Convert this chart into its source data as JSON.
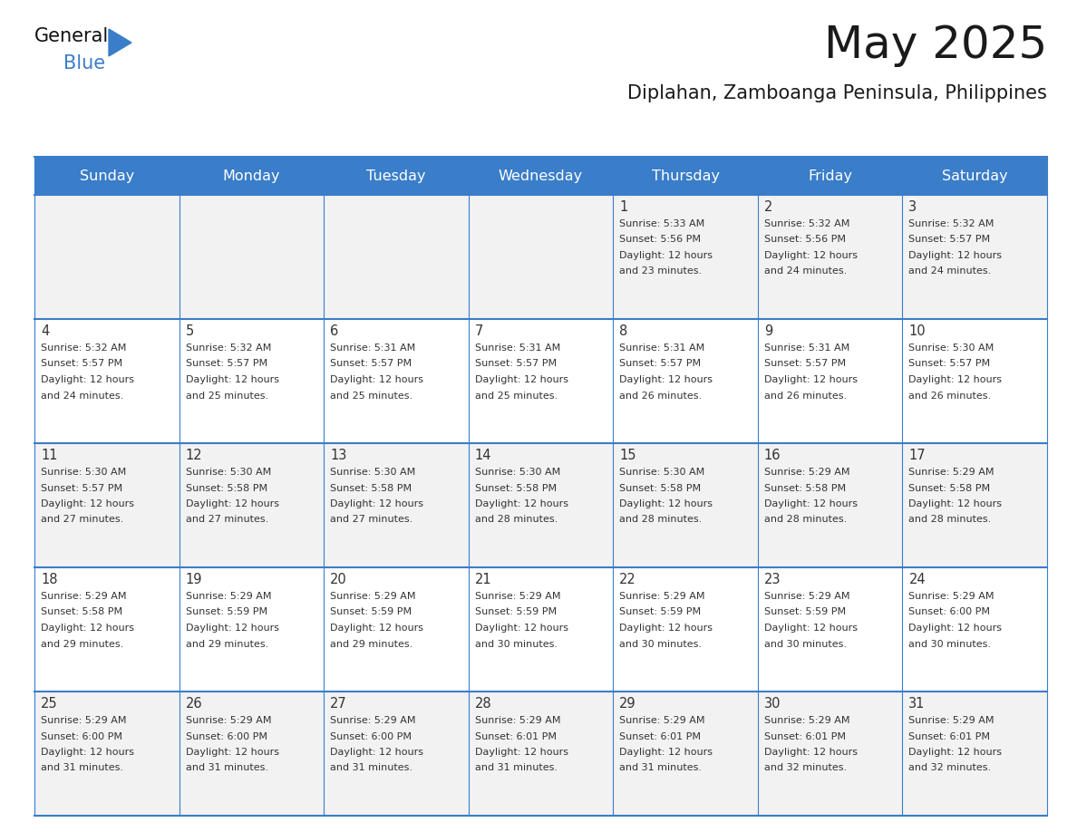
{
  "title": "May 2025",
  "subtitle": "Diplahan, Zamboanga Peninsula, Philippines",
  "days_of_week": [
    "Sunday",
    "Monday",
    "Tuesday",
    "Wednesday",
    "Thursday",
    "Friday",
    "Saturday"
  ],
  "header_bg_color": "#3A7DC9",
  "header_text_color": "#FFFFFF",
  "cell_bg_row0": "#F2F2F2",
  "cell_bg_row1": "#FFFFFF",
  "cell_text_color": "#333333",
  "day_number_color": "#333333",
  "grid_color": "#3A7DC9",
  "title_color": "#1a1a1a",
  "subtitle_color": "#1a1a1a",
  "logo_general_color": "#111111",
  "logo_blue_color": "#3A7DC9",
  "calendar_data": [
    {
      "day": 1,
      "col": 4,
      "row": 0,
      "sunrise": "5:33 AM",
      "sunset": "5:56 PM",
      "daylight_min": "23"
    },
    {
      "day": 2,
      "col": 5,
      "row": 0,
      "sunrise": "5:32 AM",
      "sunset": "5:56 PM",
      "daylight_min": "24"
    },
    {
      "day": 3,
      "col": 6,
      "row": 0,
      "sunrise": "5:32 AM",
      "sunset": "5:57 PM",
      "daylight_min": "24"
    },
    {
      "day": 4,
      "col": 0,
      "row": 1,
      "sunrise": "5:32 AM",
      "sunset": "5:57 PM",
      "daylight_min": "24"
    },
    {
      "day": 5,
      "col": 1,
      "row": 1,
      "sunrise": "5:32 AM",
      "sunset": "5:57 PM",
      "daylight_min": "25"
    },
    {
      "day": 6,
      "col": 2,
      "row": 1,
      "sunrise": "5:31 AM",
      "sunset": "5:57 PM",
      "daylight_min": "25"
    },
    {
      "day": 7,
      "col": 3,
      "row": 1,
      "sunrise": "5:31 AM",
      "sunset": "5:57 PM",
      "daylight_min": "25"
    },
    {
      "day": 8,
      "col": 4,
      "row": 1,
      "sunrise": "5:31 AM",
      "sunset": "5:57 PM",
      "daylight_min": "26"
    },
    {
      "day": 9,
      "col": 5,
      "row": 1,
      "sunrise": "5:31 AM",
      "sunset": "5:57 PM",
      "daylight_min": "26"
    },
    {
      "day": 10,
      "col": 6,
      "row": 1,
      "sunrise": "5:30 AM",
      "sunset": "5:57 PM",
      "daylight_min": "26"
    },
    {
      "day": 11,
      "col": 0,
      "row": 2,
      "sunrise": "5:30 AM",
      "sunset": "5:57 PM",
      "daylight_min": "27"
    },
    {
      "day": 12,
      "col": 1,
      "row": 2,
      "sunrise": "5:30 AM",
      "sunset": "5:58 PM",
      "daylight_min": "27"
    },
    {
      "day": 13,
      "col": 2,
      "row": 2,
      "sunrise": "5:30 AM",
      "sunset": "5:58 PM",
      "daylight_min": "27"
    },
    {
      "day": 14,
      "col": 3,
      "row": 2,
      "sunrise": "5:30 AM",
      "sunset": "5:58 PM",
      "daylight_min": "28"
    },
    {
      "day": 15,
      "col": 4,
      "row": 2,
      "sunrise": "5:30 AM",
      "sunset": "5:58 PM",
      "daylight_min": "28"
    },
    {
      "day": 16,
      "col": 5,
      "row": 2,
      "sunrise": "5:29 AM",
      "sunset": "5:58 PM",
      "daylight_min": "28"
    },
    {
      "day": 17,
      "col": 6,
      "row": 2,
      "sunrise": "5:29 AM",
      "sunset": "5:58 PM",
      "daylight_min": "28"
    },
    {
      "day": 18,
      "col": 0,
      "row": 3,
      "sunrise": "5:29 AM",
      "sunset": "5:58 PM",
      "daylight_min": "29"
    },
    {
      "day": 19,
      "col": 1,
      "row": 3,
      "sunrise": "5:29 AM",
      "sunset": "5:59 PM",
      "daylight_min": "29"
    },
    {
      "day": 20,
      "col": 2,
      "row": 3,
      "sunrise": "5:29 AM",
      "sunset": "5:59 PM",
      "daylight_min": "29"
    },
    {
      "day": 21,
      "col": 3,
      "row": 3,
      "sunrise": "5:29 AM",
      "sunset": "5:59 PM",
      "daylight_min": "30"
    },
    {
      "day": 22,
      "col": 4,
      "row": 3,
      "sunrise": "5:29 AM",
      "sunset": "5:59 PM",
      "daylight_min": "30"
    },
    {
      "day": 23,
      "col": 5,
      "row": 3,
      "sunrise": "5:29 AM",
      "sunset": "5:59 PM",
      "daylight_min": "30"
    },
    {
      "day": 24,
      "col": 6,
      "row": 3,
      "sunrise": "5:29 AM",
      "sunset": "6:00 PM",
      "daylight_min": "30"
    },
    {
      "day": 25,
      "col": 0,
      "row": 4,
      "sunrise": "5:29 AM",
      "sunset": "6:00 PM",
      "daylight_min": "31"
    },
    {
      "day": 26,
      "col": 1,
      "row": 4,
      "sunrise": "5:29 AM",
      "sunset": "6:00 PM",
      "daylight_min": "31"
    },
    {
      "day": 27,
      "col": 2,
      "row": 4,
      "sunrise": "5:29 AM",
      "sunset": "6:00 PM",
      "daylight_min": "31"
    },
    {
      "day": 28,
      "col": 3,
      "row": 4,
      "sunrise": "5:29 AM",
      "sunset": "6:01 PM",
      "daylight_min": "31"
    },
    {
      "day": 29,
      "col": 4,
      "row": 4,
      "sunrise": "5:29 AM",
      "sunset": "6:01 PM",
      "daylight_min": "31"
    },
    {
      "day": 30,
      "col": 5,
      "row": 4,
      "sunrise": "5:29 AM",
      "sunset": "6:01 PM",
      "daylight_min": "32"
    },
    {
      "day": 31,
      "col": 6,
      "row": 4,
      "sunrise": "5:29 AM",
      "sunset": "6:01 PM",
      "daylight_min": "32"
    }
  ]
}
